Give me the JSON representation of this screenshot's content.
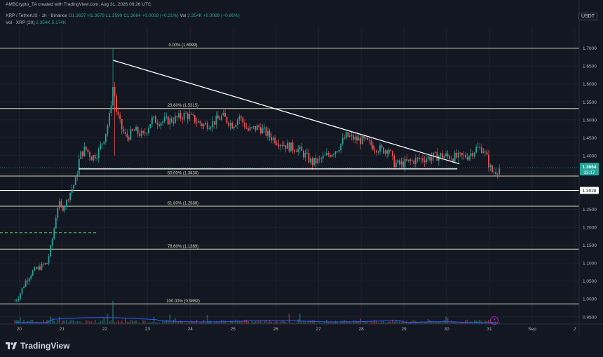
{
  "header": {
    "created_by": "AMBCrypto_TA created with TradingView.com, Aug 31, 2026 06:26 UTC",
    "symbol": "XRP / TetherUS · 1h · Binance",
    "ohlc": {
      "o": "O1.3637",
      "h": "H1.3679",
      "l": "L1.3599",
      "c": "C1.3664",
      "chg": "+0.0028 (+0.21%)"
    },
    "vol_label": "Vol",
    "vol_values": "2.354K +0.0089 (+0.66%)",
    "indicator_label": "Vol · XRP (20)",
    "indicator_values": "2.354K 5.174K"
  },
  "currency": "USDT",
  "brand": {
    "name": "TradingView",
    "icon": "tradingview-logo-icon"
  },
  "live_icon": "lightning-icon",
  "colors": {
    "background": "#131722",
    "up": "#26a69a",
    "down": "#ef5350",
    "fib": "#d8d8b8",
    "trend": "#ffffff",
    "volume_ma": "#2962ff",
    "support_dashed": "#4caf50"
  },
  "chart_data": {
    "type": "candlestick",
    "timeframe": "1h",
    "x_ticks": [
      "20",
      "21",
      "22",
      "23",
      "24",
      "25",
      "26",
      "27",
      "28",
      "29",
      "30",
      "31",
      "Sep",
      "2"
    ],
    "y_ticks": [
      "1.7000",
      "1.6500",
      "1.6000",
      "1.5500",
      "1.5000",
      "1.4500",
      "1.4000",
      "1.3500",
      "1.3000",
      "1.2500",
      "1.2000",
      "1.1500",
      "1.1000",
      "1.0500",
      "1.0000",
      "0.9500"
    ],
    "ylim": [
      0.93,
      1.76
    ],
    "xlim": [
      19.55,
      33.1
    ],
    "fib_levels": [
      {
        "label": "0.00% (1.6999)",
        "price": 1.6999
      },
      {
        "label": "23.60% (1.5315)",
        "price": 1.5315
      },
      {
        "label": "50.00% (1.3430)",
        "price": 1.343
      },
      {
        "label": "61.80% (1.2588)",
        "price": 1.2588
      },
      {
        "label": "78.60% (1.1389)",
        "price": 1.1389
      },
      {
        "label": "100.00% (0.9862)",
        "price": 0.9862
      }
    ],
    "horizontal_lines": [
      {
        "label": "1.3028",
        "price": 1.3028
      }
    ],
    "price_badge": {
      "price": "1.3664",
      "countdown": "33:17"
    },
    "trendline": {
      "from": {
        "day": 22.2,
        "price": 1.666
      },
      "to": {
        "day": 30.3,
        "price": 1.377
      }
    },
    "support_segment": {
      "from": 21.4,
      "to": 30.25,
      "price": 1.363
    },
    "dashed_level": {
      "from": 19.55,
      "to": 21.8,
      "price": 1.185
    },
    "price_path": [
      [
        19.9,
        0.995
      ],
      [
        20.0,
        1.01
      ],
      [
        20.15,
        1.05
      ],
      [
        20.3,
        1.075
      ],
      [
        20.5,
        1.09
      ],
      [
        20.65,
        1.1
      ],
      [
        20.75,
        1.15
      ],
      [
        20.82,
        1.2
      ],
      [
        20.87,
        1.24
      ],
      [
        20.92,
        1.27
      ],
      [
        21.0,
        1.25
      ],
      [
        21.1,
        1.27
      ],
      [
        21.2,
        1.3
      ],
      [
        21.32,
        1.33
      ],
      [
        21.42,
        1.4
      ],
      [
        21.55,
        1.42
      ],
      [
        21.7,
        1.395
      ],
      [
        21.85,
        1.41
      ],
      [
        22.0,
        1.455
      ],
      [
        22.1,
        1.5
      ],
      [
        22.15,
        1.55
      ],
      [
        22.2,
        1.6
      ],
      [
        22.28,
        1.52
      ],
      [
        22.38,
        1.48
      ],
      [
        22.5,
        1.45
      ],
      [
        22.7,
        1.47
      ],
      [
        22.9,
        1.455
      ],
      [
        23.1,
        1.5
      ],
      [
        23.3,
        1.495
      ],
      [
        23.6,
        1.5
      ],
      [
        23.9,
        1.515
      ],
      [
        24.1,
        1.5
      ],
      [
        24.3,
        1.485
      ],
      [
        24.5,
        1.49
      ],
      [
        24.75,
        1.51
      ],
      [
        25.0,
        1.485
      ],
      [
        25.15,
        1.51
      ],
      [
        25.35,
        1.47
      ],
      [
        25.6,
        1.48
      ],
      [
        25.85,
        1.455
      ],
      [
        26.05,
        1.44
      ],
      [
        26.3,
        1.425
      ],
      [
        26.5,
        1.42
      ],
      [
        26.7,
        1.4
      ],
      [
        26.85,
        1.38
      ],
      [
        27.0,
        1.385
      ],
      [
        27.2,
        1.4
      ],
      [
        27.45,
        1.42
      ],
      [
        27.65,
        1.455
      ],
      [
        27.9,
        1.445
      ],
      [
        28.1,
        1.44
      ],
      [
        28.3,
        1.425
      ],
      [
        28.5,
        1.415
      ],
      [
        28.65,
        1.42
      ],
      [
        28.75,
        1.38
      ],
      [
        28.9,
        1.375
      ],
      [
        29.1,
        1.382
      ],
      [
        29.35,
        1.39
      ],
      [
        29.6,
        1.395
      ],
      [
        29.85,
        1.4
      ],
      [
        30.05,
        1.398
      ],
      [
        30.25,
        1.395
      ],
      [
        30.5,
        1.4
      ],
      [
        30.7,
        1.42
      ],
      [
        30.85,
        1.42
      ],
      [
        30.95,
        1.39
      ],
      [
        31.05,
        1.355
      ],
      [
        31.15,
        1.358
      ],
      [
        31.25,
        1.366
      ]
    ],
    "wick_extremes": [
      {
        "day": 22.2,
        "high": 1.6999
      },
      {
        "day": 22.22,
        "low": 1.4
      }
    ],
    "volume": {
      "spikes": [
        {
          "day": 22.2,
          "value": 1.0
        },
        {
          "day": 20.95,
          "value": 0.3
        },
        {
          "day": 22.5,
          "value": 0.25
        },
        {
          "day": 31.0,
          "value": 0.18
        }
      ],
      "baseline_level": 0.12
    }
  }
}
